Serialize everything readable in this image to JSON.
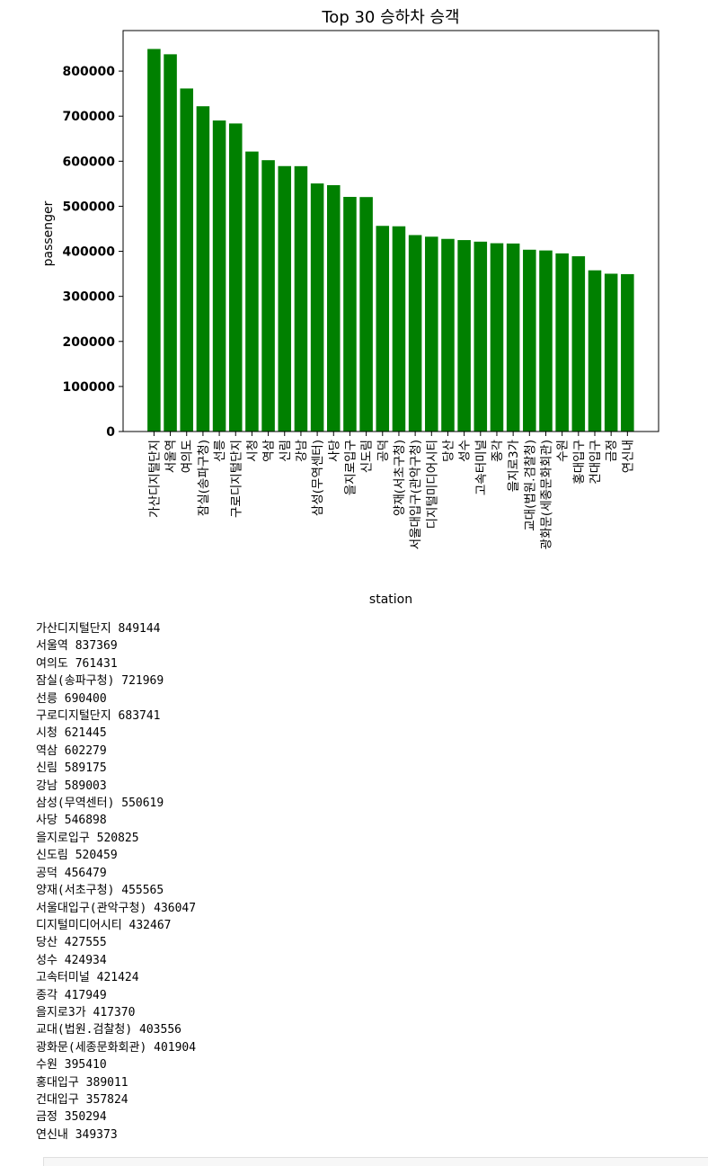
{
  "chart_data": {
    "type": "bar",
    "title": "Top 30 승하차 승객",
    "xlabel": "station",
    "ylabel": "passenger",
    "ylim": [
      0,
      890000
    ],
    "yticks": [
      0,
      100000,
      200000,
      300000,
      400000,
      500000,
      600000,
      700000,
      800000
    ],
    "grid": false,
    "bar_color": "#008000",
    "categories": [
      "가산디지털단지",
      "서울역",
      "여의도",
      "잠실(송파구청)",
      "선릉",
      "구로디지털단지",
      "시청",
      "역삼",
      "신림",
      "강남",
      "삼성(무역센터)",
      "사당",
      "을지로입구",
      "신도림",
      "공덕",
      "양재(서초구청)",
      "서울대입구(관악구청)",
      "디지털미디어시티",
      "당산",
      "성수",
      "고속터미널",
      "종각",
      "을지로3가",
      "교대(법원.검찰청)",
      "광화문(세종문화회관)",
      "수원",
      "홍대입구",
      "건대입구",
      "금정",
      "연신내"
    ],
    "values": [
      849144,
      837369,
      761431,
      721969,
      690400,
      683741,
      621445,
      602279,
      589175,
      589003,
      550619,
      546898,
      520825,
      520459,
      456479,
      455565,
      436047,
      432467,
      427555,
      424934,
      421424,
      417949,
      417370,
      403556,
      401904,
      395410,
      389011,
      357824,
      350294,
      349373
    ]
  },
  "output_lines": [
    "가산디지털단지 849144",
    "서울역 837369",
    "여의도 761431",
    "잠실(송파구청) 721969",
    "선릉 690400",
    "구로디지털단지 683741",
    "시청 621445",
    "역삼 602279",
    "신림 589175",
    "강남 589003",
    "삼성(무역센터) 550619",
    "사당 546898",
    "을지로입구 520825",
    "신도림 520459",
    "공덕 456479",
    "양재(서초구청) 455565",
    "서울대입구(관악구청) 436047",
    "디지털미디어시티 432467",
    "당산 427555",
    "성수 424934",
    "고속터미널 421424",
    "종각 417949",
    "을지로3가 417370",
    "교대(법원.검찰청) 403556",
    "광화문(세종문화회관) 401904",
    "수원 395410",
    "홍대입구 389011",
    "건대입구 357824",
    "금정 350294",
    "연신내 349373"
  ]
}
